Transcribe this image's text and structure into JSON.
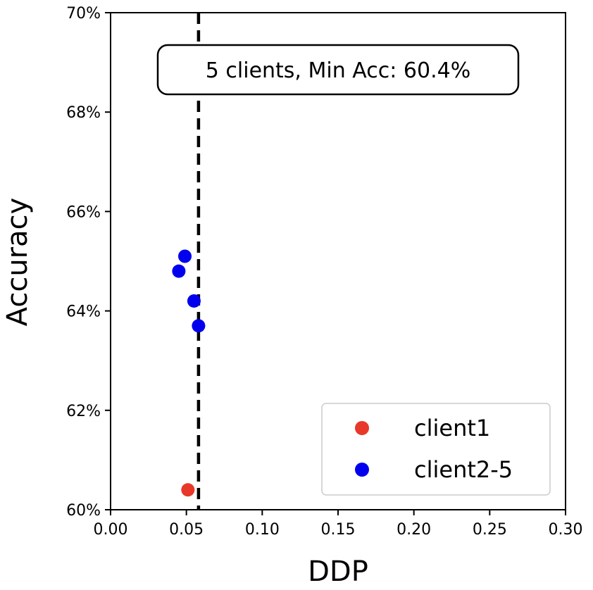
{
  "chart_data": {
    "type": "scatter",
    "xlabel": "DDP",
    "ylabel": "Accuracy",
    "xlim": [
      0.0,
      0.3
    ],
    "ylim": [
      60,
      70
    ],
    "x_ticks": [
      0.0,
      0.05,
      0.1,
      0.15,
      0.2,
      0.25,
      0.3
    ],
    "x_tick_labels": [
      "0.00",
      "0.05",
      "0.10",
      "0.15",
      "0.20",
      "0.25",
      "0.30"
    ],
    "y_ticks": [
      60,
      62,
      64,
      66,
      68,
      70
    ],
    "y_tick_labels": [
      "60%",
      "62%",
      "64%",
      "66%",
      "68%",
      "70%"
    ],
    "grid": false,
    "legend_position": "bottom-right",
    "series": [
      {
        "name": "client1",
        "color": "#e8382a",
        "points": [
          {
            "x": 0.051,
            "y": 60.4
          }
        ]
      },
      {
        "name": "client2-5",
        "color": "#0000ee",
        "points": [
          {
            "x": 0.049,
            "y": 65.1
          },
          {
            "x": 0.045,
            "y": 64.8
          },
          {
            "x": 0.055,
            "y": 64.2
          },
          {
            "x": 0.058,
            "y": 63.7
          }
        ]
      }
    ],
    "reference_line": {
      "orientation": "vertical",
      "x": 0.058,
      "style": "dashed",
      "color": "#000000"
    },
    "annotation": {
      "text": "5 clients, Min Acc: 60.4%",
      "position": "top-center"
    }
  }
}
